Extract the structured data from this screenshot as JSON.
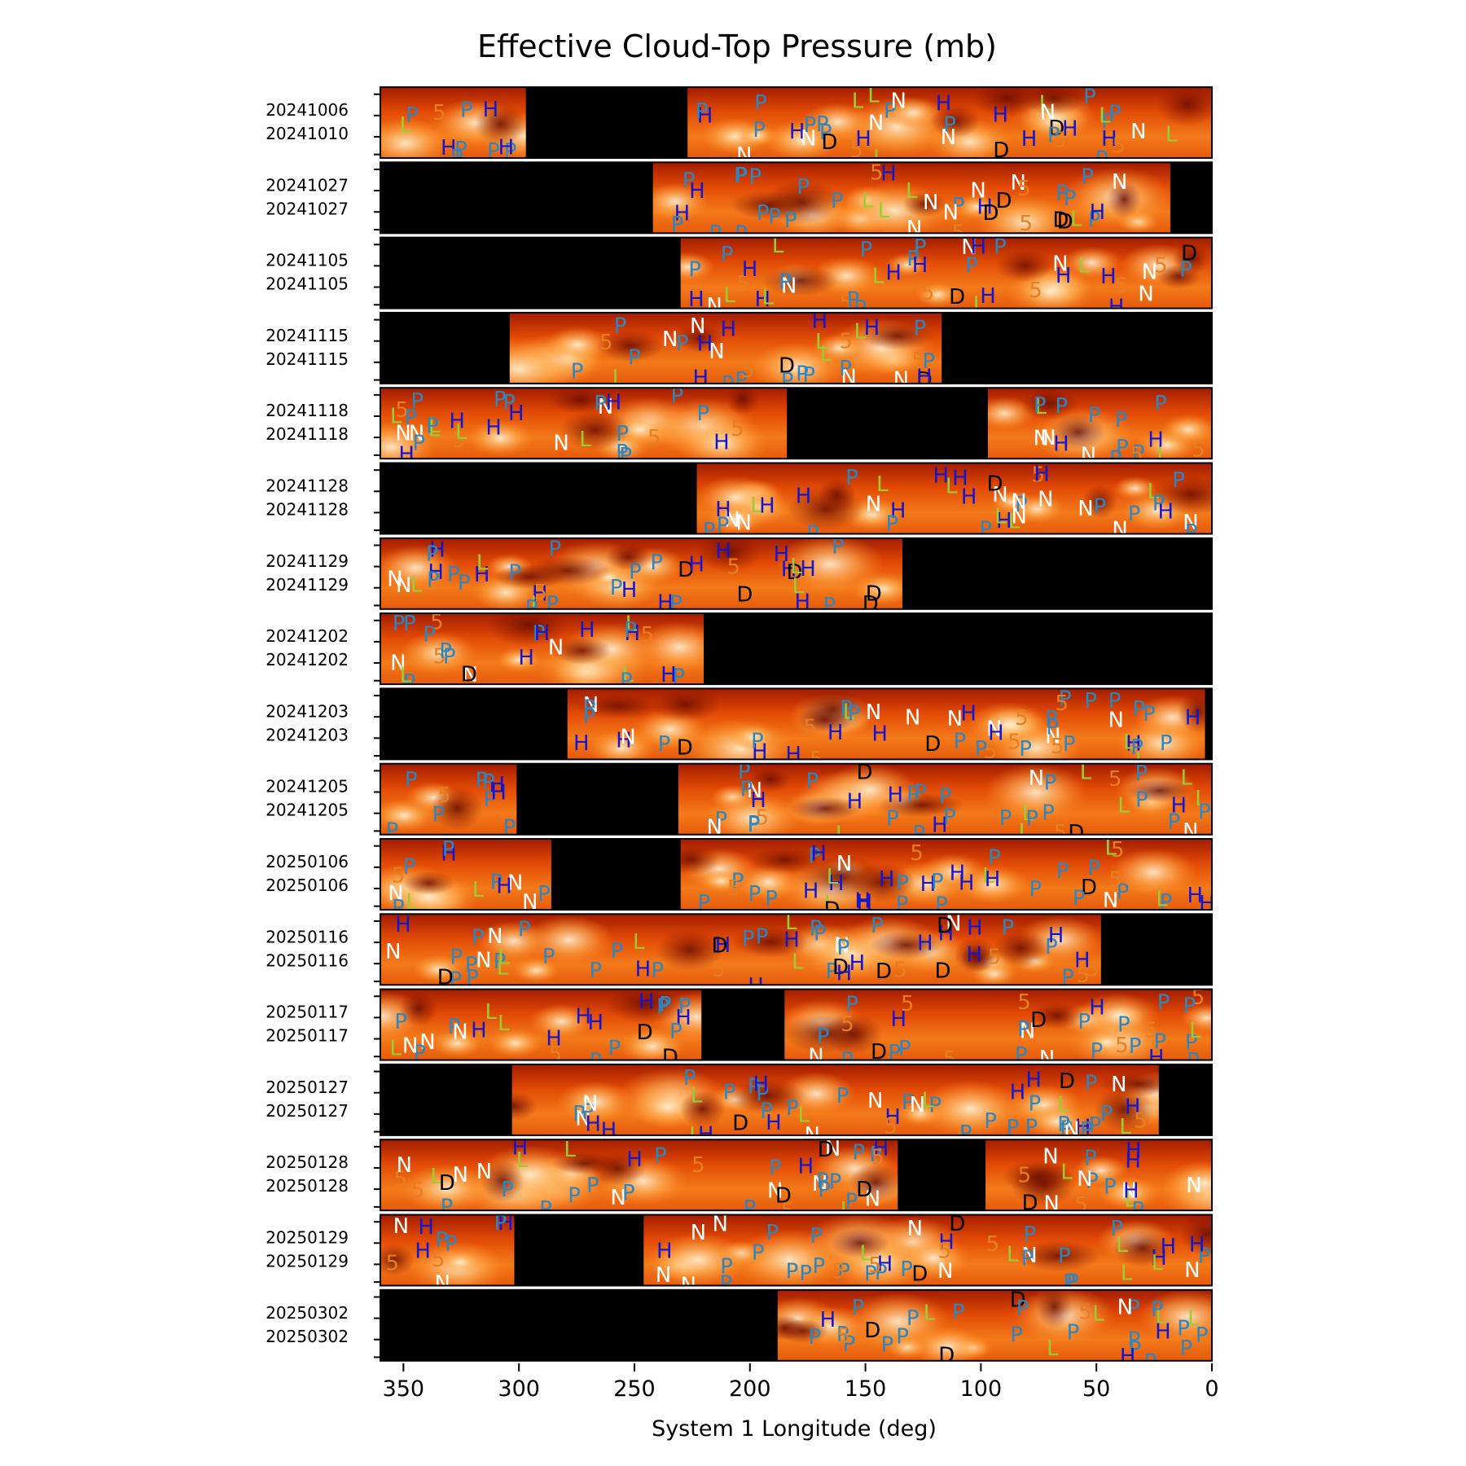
{
  "chart_data": {
    "type": "heatmap",
    "title": "Effective Cloud-Top Pressure (mb)",
    "xlabel": "System 1 Longitude (deg)",
    "ylabel": "",
    "xlim": [
      360,
      0
    ],
    "xticks": [
      350,
      300,
      250,
      200,
      150,
      100,
      50,
      0
    ],
    "colormap": "gist_heat",
    "no_data_color": "#000000",
    "marker_letters": [
      "P",
      "N",
      "H",
      "L",
      "D",
      "5"
    ],
    "marker_colors": {
      "P": "#2e86c1",
      "N": "#ffffff",
      "H": "#1515d0",
      "L": "#9acd32",
      "D": "#000000",
      "5": "#e67e22"
    },
    "strips": [
      {
        "label_top": "20241006",
        "label_bottom": "20241010",
        "coverage": [
          [
            360,
            297
          ],
          [
            227,
            0
          ]
        ]
      },
      {
        "label_top": "20241027",
        "label_bottom": "20241027",
        "coverage": [
          [
            242,
            18
          ]
        ]
      },
      {
        "label_top": "20241105",
        "label_bottom": "20241105",
        "coverage": [
          [
            230,
            0
          ]
        ]
      },
      {
        "label_top": "20241115",
        "label_bottom": "20241115",
        "coverage": [
          [
            304,
            117
          ]
        ]
      },
      {
        "label_top": "20241118",
        "label_bottom": "20241118",
        "coverage": [
          [
            360,
            184
          ],
          [
            97,
            0
          ]
        ]
      },
      {
        "label_top": "20241128",
        "label_bottom": "20241128",
        "coverage": [
          [
            223,
            0
          ]
        ]
      },
      {
        "label_top": "20241129",
        "label_bottom": "20241129",
        "coverage": [
          [
            360,
            134
          ]
        ]
      },
      {
        "label_top": "20241202",
        "label_bottom": "20241202",
        "coverage": [
          [
            360,
            220
          ]
        ]
      },
      {
        "label_top": "20241203",
        "label_bottom": "20241203",
        "coverage": [
          [
            279,
            3
          ]
        ]
      },
      {
        "label_top": "20241205",
        "label_bottom": "20241205",
        "coverage": [
          [
            360,
            301
          ],
          [
            231,
            0
          ]
        ]
      },
      {
        "label_top": "20250106",
        "label_bottom": "20250106",
        "coverage": [
          [
            360,
            286
          ],
          [
            230,
            0
          ]
        ]
      },
      {
        "label_top": "20250116",
        "label_bottom": "20250116",
        "coverage": [
          [
            360,
            48
          ]
        ]
      },
      {
        "label_top": "20250117",
        "label_bottom": "20250117",
        "coverage": [
          [
            360,
            221
          ],
          [
            185,
            0
          ]
        ]
      },
      {
        "label_top": "20250127",
        "label_bottom": "20250127",
        "coverage": [
          [
            303,
            23
          ]
        ]
      },
      {
        "label_top": "20250128",
        "label_bottom": "20250128",
        "coverage": [
          [
            360,
            136
          ],
          [
            98,
            0
          ]
        ]
      },
      {
        "label_top": "20250129",
        "label_bottom": "20250129",
        "coverage": [
          [
            360,
            302
          ],
          [
            246,
            0
          ]
        ]
      },
      {
        "label_top": "20250302",
        "label_bottom": "20250302",
        "coverage": [
          [
            188,
            0
          ]
        ]
      }
    ]
  }
}
